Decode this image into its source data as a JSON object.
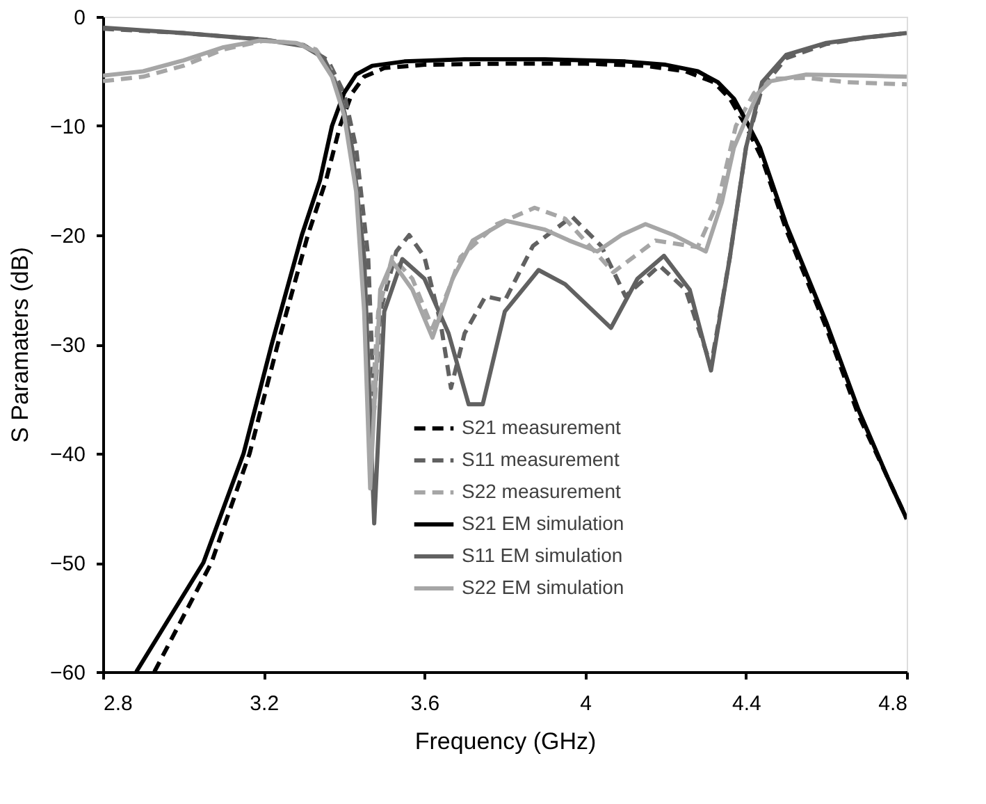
{
  "chart_data": {
    "type": "line",
    "xlabel": "Frequency (GHz)",
    "ylabel": "S Paramaters (dB)",
    "xlim": [
      2.8,
      4.8
    ],
    "xticks": [
      2.8,
      3.2,
      3.6,
      4,
      4.4,
      4.8
    ],
    "ylim": [
      -60,
      0
    ],
    "yticks": [
      -60,
      -50,
      -40,
      -30,
      -20,
      -10,
      0
    ],
    "grid": false,
    "legend": "bottom right",
    "marker": "none",
    "series": [
      {
        "name": "S21 measurement",
        "color": "#000000",
        "line_style": "dashed",
        "x": [
          2.928,
          3.07,
          3.165,
          3.235,
          3.31,
          3.355,
          3.39,
          3.42,
          3.45,
          3.5,
          3.6,
          3.8,
          4.0,
          4.15,
          4.25,
          4.32,
          4.36,
          4.4,
          4.44,
          4.5,
          4.6,
          4.68,
          4.75,
          4.8
        ],
        "values": [
          -60,
          -50,
          -40,
          -30,
          -20,
          -15,
          -10,
          -7,
          -5.5,
          -4.7,
          -4.4,
          -4.3,
          -4.3,
          -4.5,
          -5,
          -6,
          -7.5,
          -10,
          -13,
          -19.5,
          -28.5,
          -36.5,
          -42,
          -46
        ]
      },
      {
        "name": "S11 measurement",
        "color": "#616161",
        "line_style": "dashed",
        "x": [
          2.8,
          3.0,
          3.2,
          3.3,
          3.36,
          3.4,
          3.43,
          3.46,
          3.475,
          3.49,
          3.53,
          3.562,
          3.6,
          3.64,
          3.666,
          3.7,
          3.752,
          3.8,
          3.87,
          3.967,
          4.04,
          4.1,
          4.185,
          4.25,
          4.313,
          4.36,
          4.4,
          4.44,
          4.5,
          4.6,
          4.7,
          4.8
        ],
        "values": [
          -1.1,
          -1.5,
          -2.1,
          -2.6,
          -4,
          -7,
          -12,
          -22,
          -36,
          -27,
          -21.5,
          -20,
          -22,
          -28,
          -34,
          -29,
          -25.6,
          -26,
          -21,
          -18.3,
          -21,
          -25.6,
          -22.8,
          -25,
          -32,
          -22,
          -12,
          -6.5,
          -3.8,
          -2.5,
          -1.9,
          -1.5
        ]
      },
      {
        "name": "S22 measurement",
        "color": "#a6a6a6",
        "line_style": "dashed",
        "x": [
          2.8,
          2.9,
          3.0,
          3.1,
          3.2,
          3.28,
          3.33,
          3.37,
          3.4,
          3.43,
          3.455,
          3.465,
          3.485,
          3.52,
          3.57,
          3.62,
          3.66,
          3.69,
          3.78,
          3.874,
          3.95,
          4.07,
          4.175,
          4.28,
          4.33,
          4.375,
          4.42,
          4.462,
          4.55,
          4.65,
          4.8
        ],
        "values": [
          -5.9,
          -5.5,
          -4.5,
          -3,
          -2.2,
          -2.4,
          -3,
          -5,
          -8.5,
          -15,
          -28,
          -38,
          -27,
          -22,
          -24,
          -28.5,
          -25,
          -22,
          -19,
          -17.5,
          -18.5,
          -23.4,
          -20.5,
          -21.1,
          -17,
          -10,
          -7,
          -5.7,
          -5.6,
          -6,
          -6.2
        ]
      },
      {
        "name": "S21 EM simulation",
        "color": "#000000",
        "line_style": "solid",
        "x": [
          2.883,
          3.05,
          3.15,
          3.22,
          3.295,
          3.34,
          3.37,
          3.4,
          3.43,
          3.47,
          3.55,
          3.7,
          3.9,
          4.1,
          4.2,
          4.28,
          4.33,
          4.37,
          4.4,
          4.435,
          4.5,
          4.6,
          4.68,
          4.75,
          4.8
        ],
        "values": [
          -60,
          -50,
          -40,
          -30,
          -20,
          -15,
          -10,
          -7,
          -5.3,
          -4.5,
          -4.1,
          -3.9,
          -3.9,
          -4.1,
          -4.4,
          -5,
          -6,
          -7.5,
          -9.5,
          -12,
          -19,
          -28,
          -36,
          -42,
          -46
        ]
      },
      {
        "name": "S11 EM simulation",
        "color": "#616161",
        "line_style": "solid",
        "x": [
          2.8,
          3.0,
          3.2,
          3.3,
          3.35,
          3.39,
          3.42,
          3.45,
          3.475,
          3.5,
          3.545,
          3.6,
          3.66,
          3.71,
          3.745,
          3.8,
          3.884,
          3.95,
          4.064,
          4.13,
          4.196,
          4.26,
          4.313,
          4.36,
          4.4,
          4.44,
          4.5,
          4.6,
          4.7,
          4.8
        ],
        "values": [
          -1,
          -1.5,
          -2.1,
          -2.7,
          -3.8,
          -7,
          -12,
          -22,
          -46.4,
          -27,
          -22.2,
          -24,
          -29,
          -35.5,
          -35.5,
          -27,
          -23.2,
          -24.5,
          -28.5,
          -24,
          -21.9,
          -25,
          -32.4,
          -22,
          -12,
          -6,
          -3.5,
          -2.4,
          -1.9,
          -1.5
        ]
      },
      {
        "name": "S22 EM simulation",
        "color": "#a6a6a6",
        "line_style": "solid",
        "x": [
          2.8,
          2.9,
          3.0,
          3.1,
          3.19,
          3.28,
          3.33,
          3.37,
          3.4,
          3.43,
          3.45,
          3.465,
          3.49,
          3.52,
          3.57,
          3.62,
          3.67,
          3.72,
          3.804,
          3.9,
          3.96,
          4.03,
          4.09,
          4.15,
          4.22,
          4.3,
          4.34,
          4.37,
          4.393,
          4.43,
          4.462,
          4.55,
          4.7,
          4.8
        ],
        "values": [
          -5.4,
          -5,
          -4,
          -2.8,
          -2.2,
          -2.4,
          -3.2,
          -5.5,
          -9,
          -16,
          -27,
          -43.2,
          -25,
          -22.4,
          -25,
          -29.4,
          -24,
          -20.5,
          -18.7,
          -19.5,
          -20.5,
          -21.5,
          -20,
          -19,
          -20,
          -21.5,
          -17,
          -12,
          -10,
          -7,
          -5.9,
          -5.3,
          -5.4,
          -5.5
        ]
      }
    ]
  }
}
